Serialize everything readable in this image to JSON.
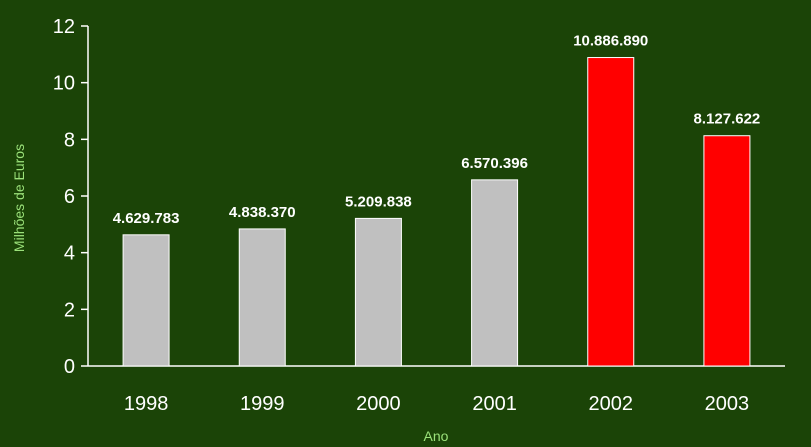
{
  "chart_data": {
    "type": "bar",
    "categories": [
      "1998",
      "1999",
      "2000",
      "2001",
      "2002",
      "2003"
    ],
    "values": [
      4.629783,
      4.83837,
      5.209838,
      6.570396,
      10.88689,
      8.127622
    ],
    "data_labels": [
      "4.629.783",
      "4.838.370",
      "5.209.838",
      "6.570.396",
      "10.886.890",
      "8.127.622"
    ],
    "bar_colors": [
      "#c0c0c0",
      "#c0c0c0",
      "#c0c0c0",
      "#c0c0c0",
      "#ff0000",
      "#ff0000"
    ],
    "ylabel": "Milhões de Euros",
    "xlabel": "Ano",
    "ylim": [
      0,
      12
    ],
    "yticks": [
      0,
      2,
      4,
      6,
      8,
      10,
      12
    ],
    "grid": false,
    "colors": {
      "background": "#1b4407",
      "axis": "#ffffff",
      "axis_title": "#9be27a",
      "text": "#ffffff"
    }
  }
}
